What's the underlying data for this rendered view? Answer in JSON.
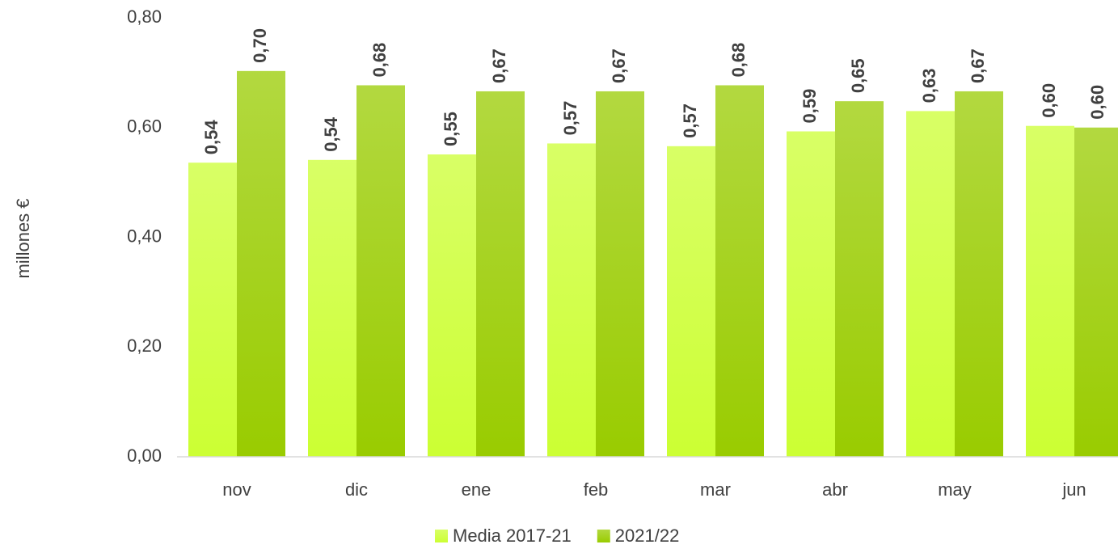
{
  "chart_data": {
    "type": "bar",
    "y_label": "millones €",
    "categories": [
      "nov",
      "dic",
      "ene",
      "feb",
      "mar",
      "abr",
      "may",
      "jun"
    ],
    "series": [
      {
        "name": "Media 2017-21",
        "color": "#ccff33",
        "values": [
          0.536,
          0.541,
          0.551,
          0.571,
          0.566,
          0.593,
          0.63,
          0.603
        ],
        "value_labels": [
          "0,54",
          "0,54",
          "0,55",
          "0,57",
          "0,57",
          "0,59",
          "0,63",
          "0,60"
        ]
      },
      {
        "name": "2021/22",
        "color": "#99cc00",
        "values": [
          0.703,
          0.677,
          0.666,
          0.666,
          0.677,
          0.648,
          0.666,
          0.6
        ],
        "value_labels": [
          "0,70",
          "0,68",
          "0,67",
          "0,67",
          "0,68",
          "0,65",
          "0,67",
          "0,60"
        ]
      }
    ],
    "ylim": [
      0,
      0.8
    ],
    "yticks": [
      {
        "value": 0,
        "label": "0,00"
      },
      {
        "value": 0.2,
        "label": "0,20"
      },
      {
        "value": 0.4,
        "label": "0,40"
      },
      {
        "value": 0.6,
        "label": "0,60"
      },
      {
        "value": 0.8,
        "label": "0,80"
      }
    ],
    "grid": false,
    "legend": "bottom"
  }
}
